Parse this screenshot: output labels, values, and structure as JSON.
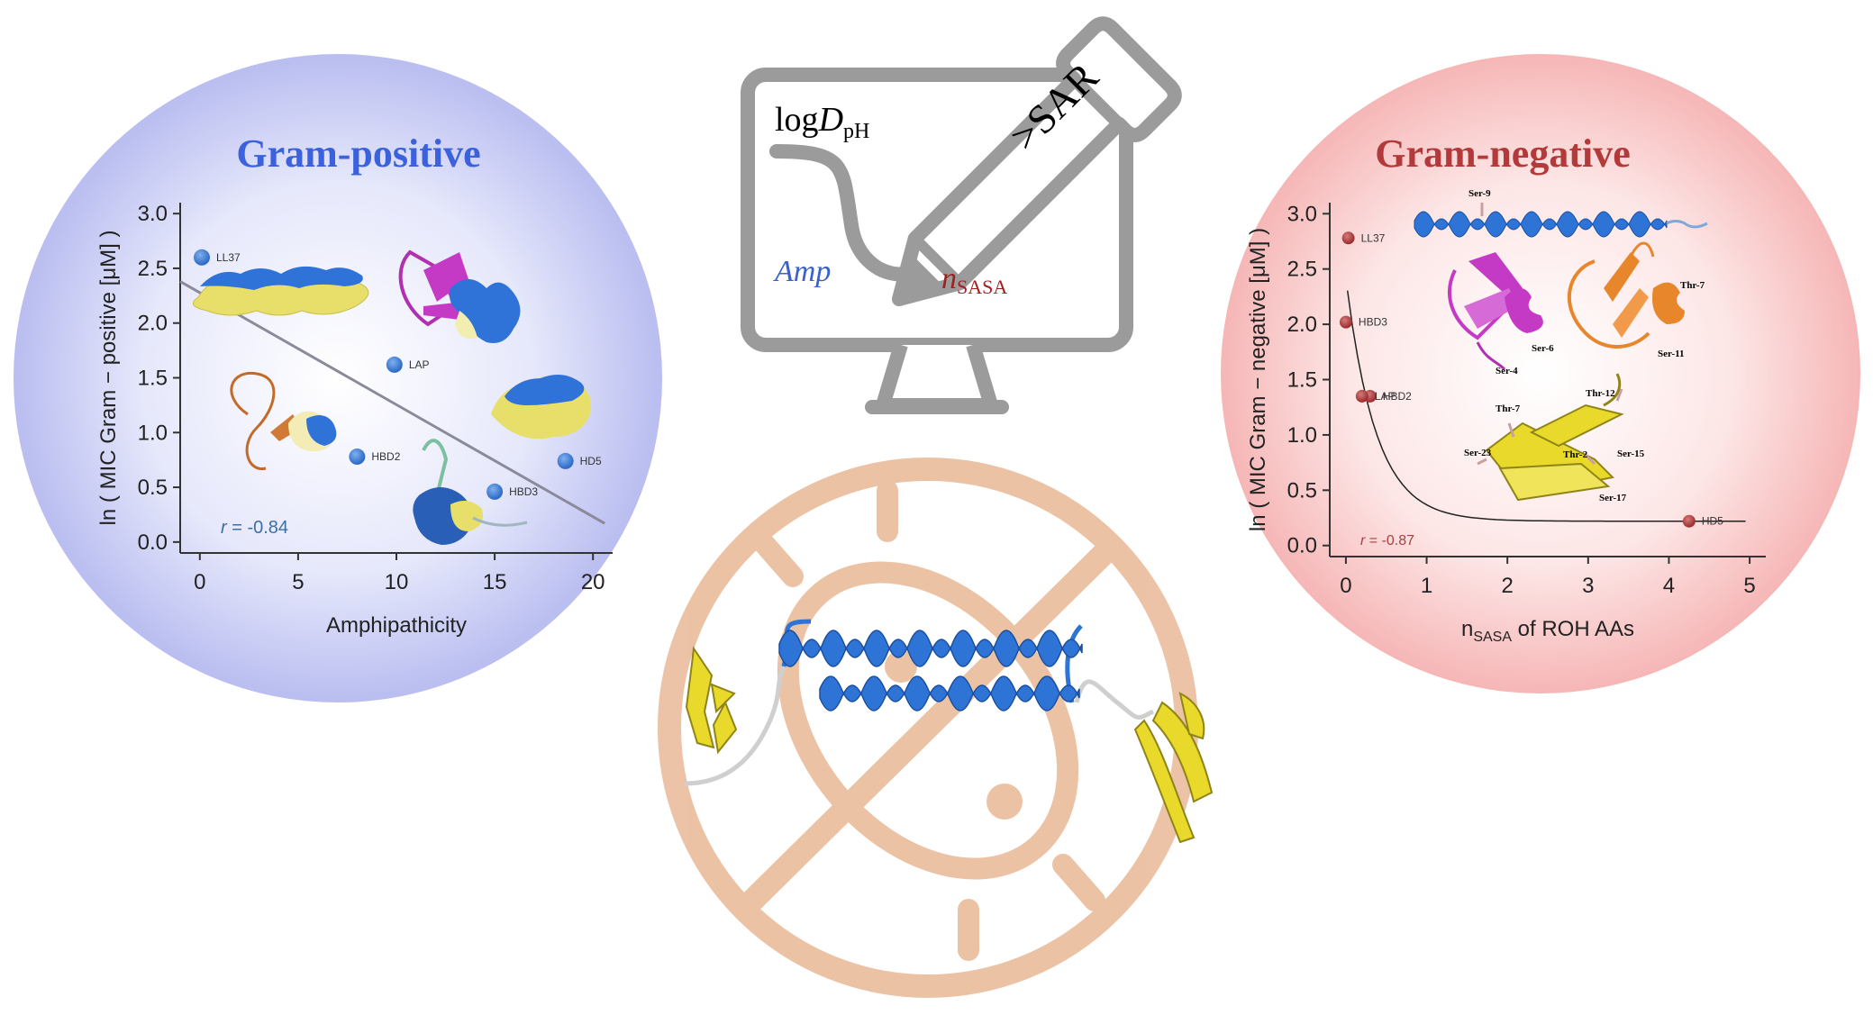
{
  "colors": {
    "gram_positive_title": "#3b62dc",
    "gram_negative_title": "#b23a3a",
    "point_pos": "#3a7bd5",
    "point_neg": "#a94040",
    "fit_line": "#8a8a9a",
    "axis": "#333333",
    "monitor": "#9b9b9b",
    "forbidden": "#e9b896",
    "helix_blue": "#2e73d6",
    "sheet_yellow": "#e8d92b",
    "magenta": "#c43ac4",
    "orange": "#e8862c",
    "r_pos": "#3a6fa8",
    "r_neg": "#a94040"
  },
  "monitor": {
    "logD_main": "log",
    "logD_italic": "D",
    "logD_sub": "pH",
    "amp": "Amp",
    "nsasa_n": "n",
    "nsasa_sub": "SASA",
    "pen_text": ">SAR"
  },
  "chart_data": [
    {
      "type": "scatter",
      "title": "Gram-positive",
      "xlabel": "Amphipathicity",
      "ylabel": "ln ( MIC Gram − positive [μM] )",
      "xlim": [
        -1,
        21
      ],
      "ylim": [
        -0.1,
        3.1
      ],
      "xticks": [
        0,
        5,
        10,
        15,
        20
      ],
      "yticks": [
        0.0,
        0.5,
        1.0,
        1.5,
        2.0,
        2.5,
        3.0
      ],
      "xtick_labels": [
        "0",
        "5",
        "10",
        "15",
        "20"
      ],
      "ytick_labels": [
        "0.0",
        "0.5",
        "1.0",
        "1.5",
        "2.0",
        "2.5",
        "3.0"
      ],
      "points": [
        {
          "label": "LL37",
          "x": 0.1,
          "y": 2.6
        },
        {
          "label": "LAP",
          "x": 9.9,
          "y": 1.62
        },
        {
          "label": "HBD2",
          "x": 8.0,
          "y": 0.78
        },
        {
          "label": "HBD3",
          "x": 15.0,
          "y": 0.46
        },
        {
          "label": "HD5",
          "x": 18.6,
          "y": 0.74
        }
      ],
      "fit": {
        "x": [
          -1,
          20.6
        ],
        "y": [
          2.38,
          0.17
        ]
      },
      "annotation_r": "r",
      "annotation_value": " = -0.84"
    },
    {
      "type": "scatter",
      "title": "Gram-negative",
      "xlabel": "n",
      "xlabel_sub": "SASA",
      "xlabel_rest": " of ROH AAs",
      "ylabel": "ln ( MIC Gram − negative [μM] )",
      "xlim": [
        -0.2,
        5.2
      ],
      "ylim": [
        -0.1,
        3.1
      ],
      "xticks": [
        0,
        1,
        2,
        3,
        4,
        5
      ],
      "yticks": [
        0.0,
        0.5,
        1.0,
        1.5,
        2.0,
        2.5,
        3.0
      ],
      "xtick_labels": [
        "0",
        "1",
        "2",
        "3",
        "4",
        "5"
      ],
      "ytick_labels": [
        "0.0",
        "0.5",
        "1.0",
        "1.5",
        "2.0",
        "2.5",
        "3.0"
      ],
      "points": [
        {
          "label": "LL37",
          "x": 0.03,
          "y": 2.78
        },
        {
          "label": "HBD3",
          "x": 0.0,
          "y": 2.02
        },
        {
          "label": "HBD2",
          "x": 0.3,
          "y": 1.35
        },
        {
          "label": "LAP",
          "x": 0.2,
          "y": 1.35
        },
        {
          "label": "HD5",
          "x": 4.25,
          "y": 0.22
        }
      ],
      "fit": {
        "type": "exponential",
        "a": 2.2,
        "k": 2.7,
        "c": 0.22,
        "x_start": 0.02,
        "x_end": 4.95
      },
      "annotation_r": "r",
      "annotation_value": " = -0.87",
      "residue_labels": [
        "Ser-9",
        "Ser-6",
        "Ser-4",
        "Thr-7",
        "Ser-11",
        "Thr-12",
        "Thr-7",
        "Ser-23",
        "Thr-2",
        "Ser-15",
        "Ser-17"
      ]
    }
  ]
}
